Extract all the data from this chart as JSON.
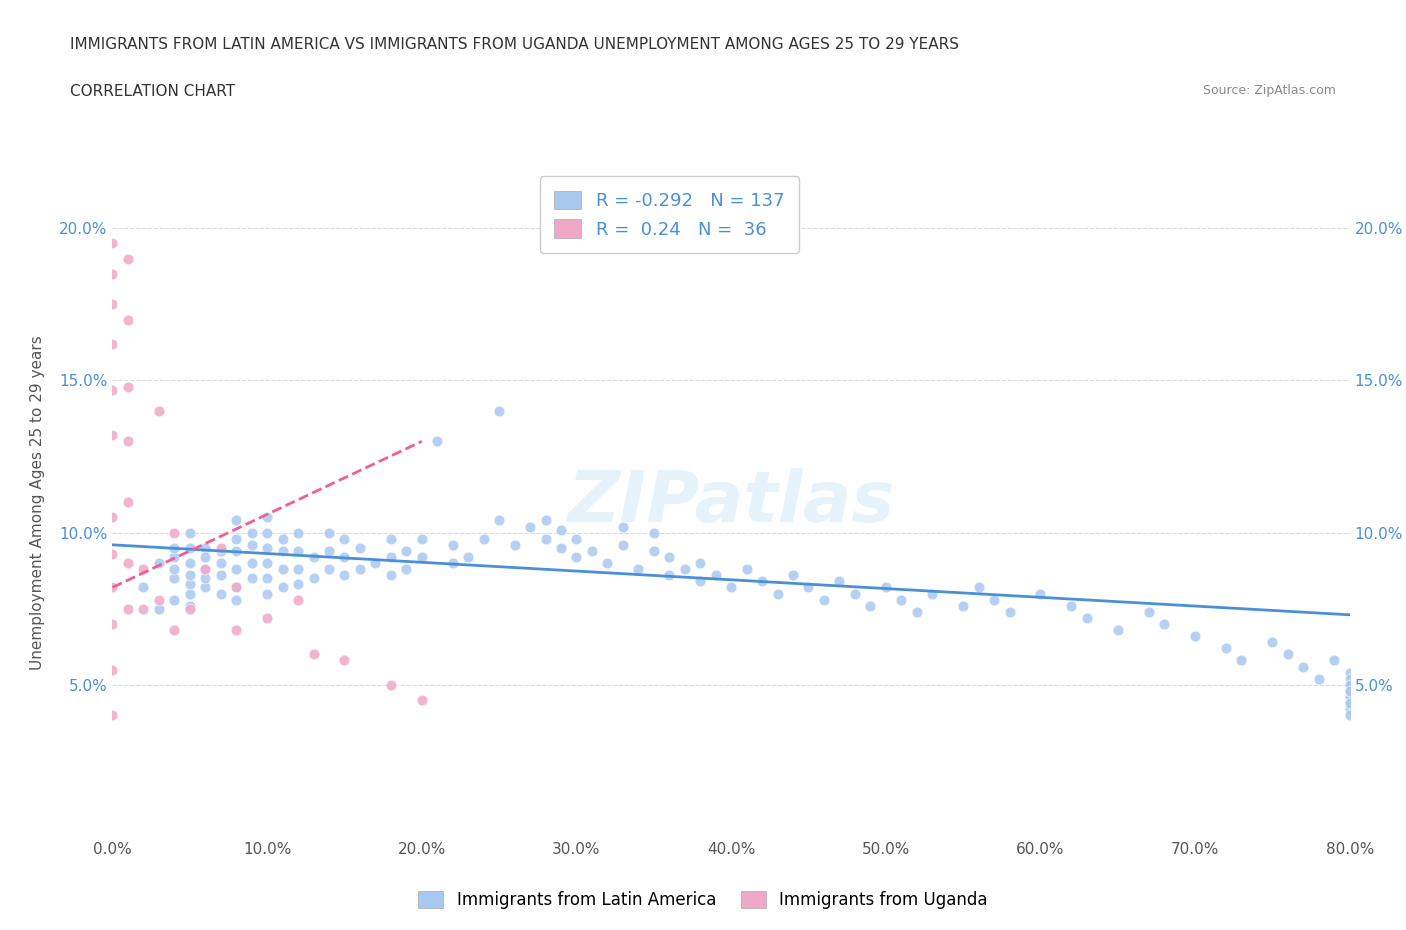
{
  "title_line1": "IMMIGRANTS FROM LATIN AMERICA VS IMMIGRANTS FROM UGANDA UNEMPLOYMENT AMONG AGES 25 TO 29 YEARS",
  "title_line2": "CORRELATION CHART",
  "source_text": "Source: ZipAtlas.com",
  "xlabel": "",
  "ylabel": "Unemployment Among Ages 25 to 29 years",
  "xlim": [
    0.0,
    0.8
  ],
  "ylim": [
    0.0,
    0.22
  ],
  "xtick_labels": [
    "0.0%",
    "10.0%",
    "20.0%",
    "30.0%",
    "40.0%",
    "50.0%",
    "60.0%",
    "70.0%",
    "80.0%"
  ],
  "xtick_values": [
    0.0,
    0.1,
    0.2,
    0.3,
    0.4,
    0.5,
    0.6,
    0.7,
    0.8
  ],
  "ytick_labels": [
    "5.0%",
    "10.0%",
    "15.0%",
    "20.0%"
  ],
  "ytick_values": [
    0.05,
    0.1,
    0.15,
    0.2
  ],
  "blue_color": "#a8c8f0",
  "pink_color": "#f0a8c8",
  "blue_line_color": "#4a90d9",
  "pink_line_color": "#f06090",
  "R_blue": -0.292,
  "N_blue": 137,
  "R_pink": 0.24,
  "N_pink": 36,
  "legend_label_blue": "Immigrants from Latin America",
  "legend_label_pink": "Immigrants from Uganda",
  "watermark": "ZIPatlas",
  "blue_scatter_x": [
    0.02,
    0.03,
    0.03,
    0.04,
    0.04,
    0.04,
    0.04,
    0.04,
    0.05,
    0.05,
    0.05,
    0.05,
    0.05,
    0.05,
    0.05,
    0.06,
    0.06,
    0.06,
    0.06,
    0.06,
    0.07,
    0.07,
    0.07,
    0.07,
    0.08,
    0.08,
    0.08,
    0.08,
    0.08,
    0.08,
    0.09,
    0.09,
    0.09,
    0.09,
    0.1,
    0.1,
    0.1,
    0.1,
    0.1,
    0.1,
    0.11,
    0.11,
    0.11,
    0.11,
    0.12,
    0.12,
    0.12,
    0.12,
    0.13,
    0.13,
    0.14,
    0.14,
    0.14,
    0.15,
    0.15,
    0.15,
    0.16,
    0.16,
    0.17,
    0.18,
    0.18,
    0.18,
    0.19,
    0.19,
    0.2,
    0.2,
    0.21,
    0.22,
    0.22,
    0.23,
    0.24,
    0.25,
    0.25,
    0.26,
    0.27,
    0.28,
    0.28,
    0.29,
    0.29,
    0.3,
    0.3,
    0.31,
    0.32,
    0.33,
    0.33,
    0.34,
    0.35,
    0.35,
    0.36,
    0.36,
    0.37,
    0.38,
    0.38,
    0.39,
    0.4,
    0.41,
    0.42,
    0.43,
    0.44,
    0.45,
    0.46,
    0.47,
    0.48,
    0.49,
    0.5,
    0.51,
    0.52,
    0.53,
    0.55,
    0.56,
    0.57,
    0.58,
    0.6,
    0.62,
    0.63,
    0.65,
    0.67,
    0.68,
    0.7,
    0.72,
    0.73,
    0.75,
    0.76,
    0.77,
    0.78,
    0.79,
    0.8,
    0.8,
    0.8,
    0.8,
    0.8,
    0.8,
    0.8,
    0.8,
    0.8,
    0.8,
    0.8,
    0.8
  ],
  "blue_scatter_y": [
    0.082,
    0.075,
    0.09,
    0.085,
    0.078,
    0.092,
    0.088,
    0.095,
    0.08,
    0.076,
    0.083,
    0.09,
    0.095,
    0.1,
    0.086,
    0.082,
    0.088,
    0.095,
    0.092,
    0.085,
    0.08,
    0.086,
    0.09,
    0.094,
    0.082,
    0.078,
    0.088,
    0.094,
    0.098,
    0.104,
    0.085,
    0.09,
    0.096,
    0.1,
    0.08,
    0.085,
    0.09,
    0.095,
    0.1,
    0.105,
    0.082,
    0.088,
    0.094,
    0.098,
    0.083,
    0.088,
    0.094,
    0.1,
    0.085,
    0.092,
    0.088,
    0.094,
    0.1,
    0.086,
    0.092,
    0.098,
    0.088,
    0.095,
    0.09,
    0.086,
    0.092,
    0.098,
    0.088,
    0.094,
    0.092,
    0.098,
    0.13,
    0.09,
    0.096,
    0.092,
    0.098,
    0.104,
    0.14,
    0.096,
    0.102,
    0.098,
    0.104,
    0.095,
    0.101,
    0.092,
    0.098,
    0.094,
    0.09,
    0.096,
    0.102,
    0.088,
    0.094,
    0.1,
    0.086,
    0.092,
    0.088,
    0.084,
    0.09,
    0.086,
    0.082,
    0.088,
    0.084,
    0.08,
    0.086,
    0.082,
    0.078,
    0.084,
    0.08,
    0.076,
    0.082,
    0.078,
    0.074,
    0.08,
    0.076,
    0.082,
    0.078,
    0.074,
    0.08,
    0.076,
    0.072,
    0.068,
    0.074,
    0.07,
    0.066,
    0.062,
    0.058,
    0.064,
    0.06,
    0.056,
    0.052,
    0.058,
    0.054,
    0.05,
    0.046,
    0.052,
    0.048,
    0.044,
    0.05,
    0.046,
    0.042,
    0.048,
    0.044,
    0.04
  ],
  "pink_scatter_x": [
    0.0,
    0.0,
    0.0,
    0.0,
    0.0,
    0.0,
    0.0,
    0.0,
    0.0,
    0.0,
    0.0,
    0.0,
    0.01,
    0.01,
    0.01,
    0.01,
    0.01,
    0.01,
    0.01,
    0.02,
    0.02,
    0.03,
    0.03,
    0.04,
    0.04,
    0.05,
    0.06,
    0.07,
    0.08,
    0.08,
    0.1,
    0.12,
    0.13,
    0.15,
    0.18,
    0.2
  ],
  "pink_scatter_y": [
    0.195,
    0.185,
    0.175,
    0.162,
    0.147,
    0.132,
    0.105,
    0.093,
    0.082,
    0.07,
    0.055,
    0.04,
    0.19,
    0.17,
    0.148,
    0.13,
    0.11,
    0.09,
    0.075,
    0.088,
    0.075,
    0.14,
    0.078,
    0.1,
    0.068,
    0.075,
    0.088,
    0.095,
    0.082,
    0.068,
    0.072,
    0.078,
    0.06,
    0.058,
    0.05,
    0.045
  ],
  "blue_trend_x": [
    0.0,
    0.8
  ],
  "blue_trend_y": [
    0.096,
    0.073
  ],
  "pink_trend_x": [
    0.0,
    0.2
  ],
  "pink_trend_y": [
    0.082,
    0.13
  ]
}
